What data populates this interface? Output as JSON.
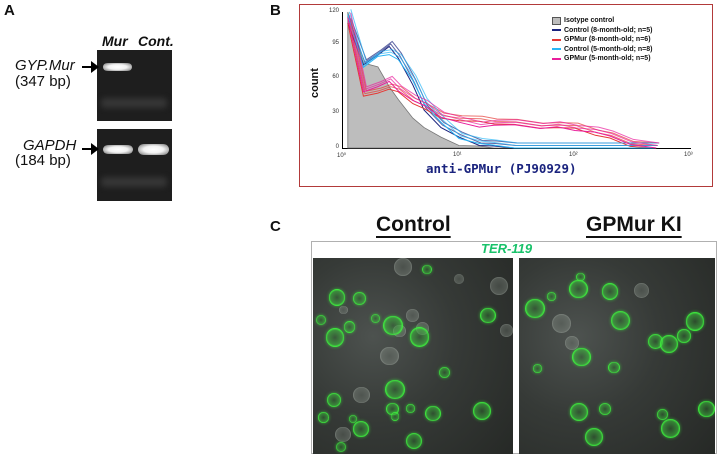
{
  "panel_a": {
    "letter": "A",
    "lane_headers": [
      "Mur",
      "Cont."
    ],
    "genes": [
      {
        "name": "GYP.Mur",
        "size": "(347 bp)"
      },
      {
        "name": "GAPDH",
        "size": "(184 bp)"
      }
    ]
  },
  "panel_b": {
    "letter": "B",
    "legend": [
      {
        "label": "Isotype control",
        "color": "#bdbdbd"
      },
      {
        "label": "Control (8-month-old; n=5)",
        "color": "#1a237e"
      },
      {
        "label": "GPMur (8-month-old; n=6)",
        "color": "#e53935"
      },
      {
        "label": "Control (5-month-old; n=8)",
        "color": "#29b6f6"
      },
      {
        "label": "GPMur (5-month-old; n=5)",
        "color": "#e91e9c"
      }
    ],
    "y_ticks": [
      "120",
      "95",
      "60",
      "30",
      "0"
    ],
    "x_ticks": [
      "10⁰",
      "10¹",
      "10²",
      "10³"
    ]
  },
  "chart_data": {
    "type": "area",
    "xlabel": "anti-GPMur (PJ90929)",
    "ylabel": "count",
    "xscale": "log",
    "xlim": [
      1,
      1000
    ],
    "ylim": [
      0,
      120
    ],
    "x": [
      1.1,
      1.5,
      2,
      2.5,
      3,
      4,
      5,
      7,
      10,
      15,
      20,
      30,
      50,
      70,
      100,
      150,
      200,
      300,
      500
    ],
    "series": [
      {
        "name": "Isotype control",
        "color": "#bdbdbd",
        "fill": true,
        "values": [
          120,
          75,
          70,
          55,
          42,
          28,
          18,
          8,
          3,
          1,
          0,
          0,
          0,
          0,
          0,
          0,
          0,
          0,
          0
        ]
      },
      {
        "name": "Control (8-month-old; n=5)",
        "color": "#1a237e",
        "values": [
          110,
          75,
          82,
          88,
          80,
          55,
          35,
          18,
          8,
          3,
          1,
          0,
          0,
          0,
          0,
          0,
          0,
          0,
          0
        ]
      },
      {
        "name": "GPMur (8-month-old; n=6)",
        "color": "#e53935",
        "values": [
          110,
          45,
          50,
          52,
          48,
          40,
          34,
          28,
          24,
          22,
          22,
          20,
          19,
          18,
          16,
          12,
          8,
          3,
          0
        ]
      },
      {
        "name": "Control (5-month-old; n=8)",
        "color": "#29b6f6",
        "values": [
          118,
          72,
          80,
          84,
          78,
          58,
          40,
          22,
          10,
          4,
          1,
          0,
          0,
          0,
          0,
          0,
          0,
          0,
          0
        ]
      },
      {
        "name": "GPMur (5-month-old; n=5)",
        "color": "#e91e9c",
        "values": [
          115,
          48,
          55,
          58,
          52,
          42,
          36,
          28,
          22,
          20,
          20,
          19,
          18,
          18,
          17,
          14,
          9,
          4,
          0
        ]
      }
    ]
  },
  "panel_c": {
    "letter": "C",
    "titles": [
      "Control",
      "GPMur KI"
    ],
    "stain": "TER-119"
  }
}
